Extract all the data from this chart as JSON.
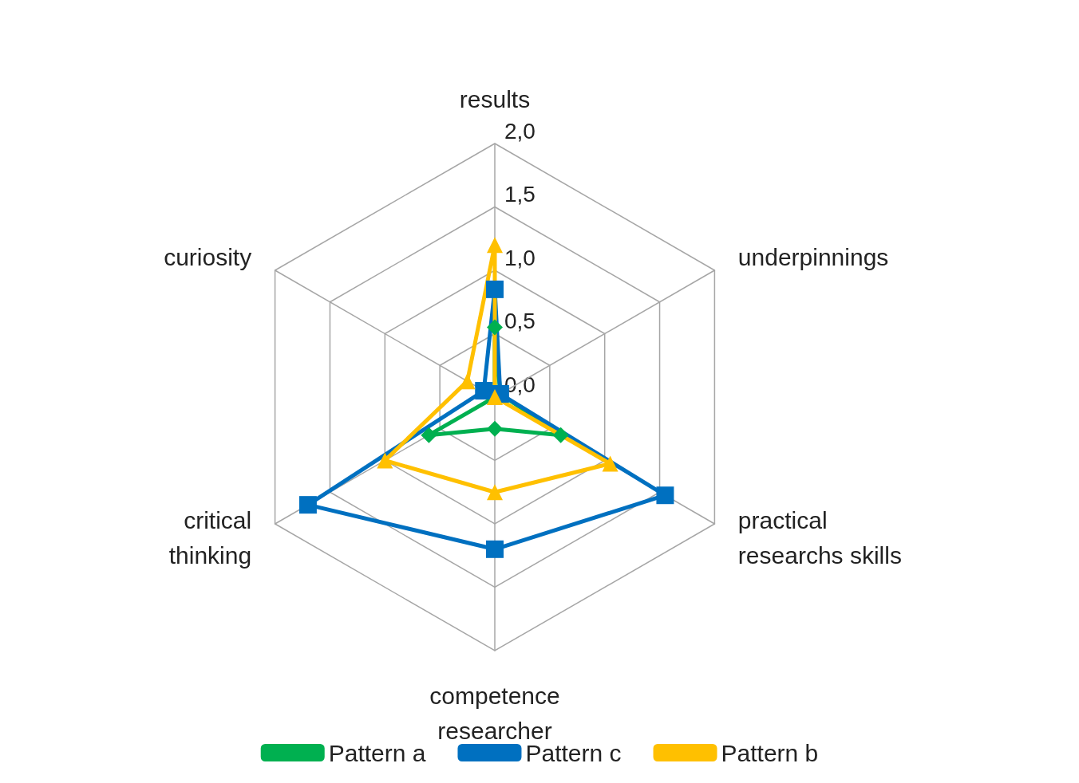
{
  "chart_data": {
    "type": "radar",
    "categories": [
      "results",
      "underpinnings",
      "practical\nresearchs skills",
      "competence\nresearcher",
      "critical\nthinking",
      "curiosity"
    ],
    "ylim": [
      0,
      2
    ],
    "yticks": [
      {
        "value": 0,
        "label": "0,0"
      },
      {
        "value": 0.5,
        "label": "0,5"
      },
      {
        "value": 1,
        "label": "1,0"
      },
      {
        "value": 1.5,
        "label": "1,5"
      },
      {
        "value": 2,
        "label": "2,0"
      }
    ],
    "grid": true,
    "legend": "bottom",
    "line_style": "solid",
    "series": [
      {
        "name": "Pattern a",
        "color": "#00b050",
        "marker": "diamond",
        "values": [
          0.55,
          0.05,
          0.6,
          0.25,
          0.6,
          0
        ]
      },
      {
        "name": "Pattern c",
        "color": "#0070c0",
        "marker": "square",
        "values": [
          0.85,
          0.05,
          1.55,
          1.2,
          1.7,
          0.1
        ]
      },
      {
        "name": "Pattern b",
        "color": "#ffc000",
        "marker": "triangle",
        "values": [
          1.2,
          0,
          1.05,
          0.75,
          1.0,
          0.25
        ]
      }
    ]
  }
}
